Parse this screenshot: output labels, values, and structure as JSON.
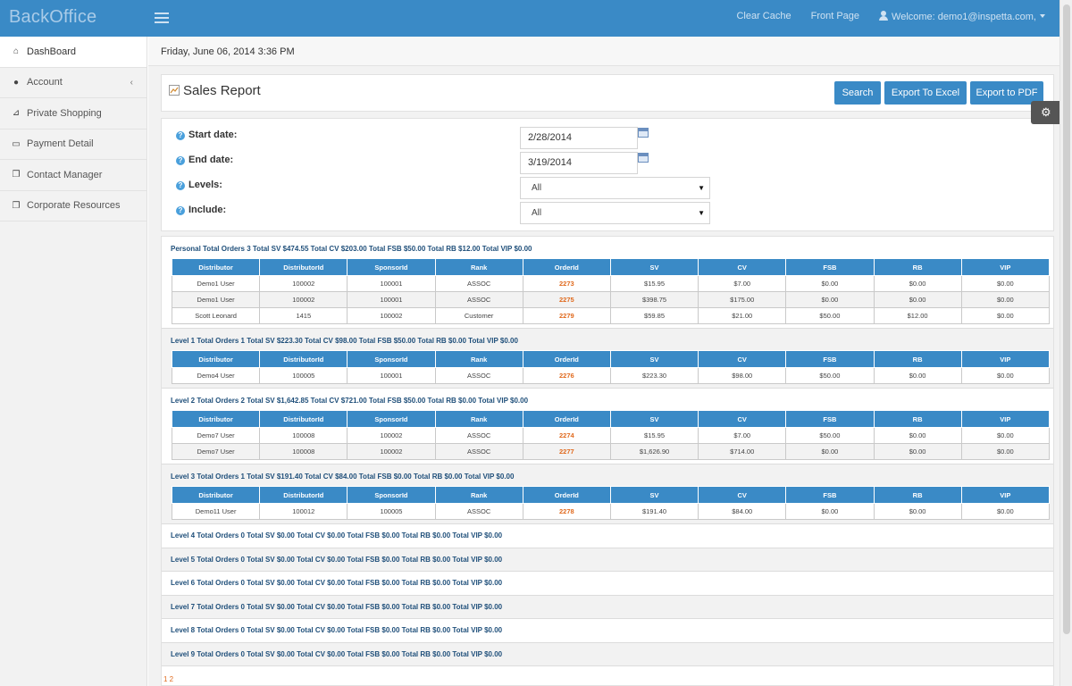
{
  "app": {
    "brand": "BackOffice"
  },
  "topnav": {
    "clear_cache": "Clear Cache",
    "front_page": "Front Page",
    "welcome": "Welcome: demo1@inspetta.com,"
  },
  "sidebar": {
    "items": [
      {
        "label": "DashBoard",
        "icon": "dashboard-icon"
      },
      {
        "label": "Account",
        "icon": "user-icon",
        "chevron": "‹"
      },
      {
        "label": "Private Shopping",
        "icon": "cart-icon"
      },
      {
        "label": "Payment Detail",
        "icon": "money-icon"
      },
      {
        "label": "Contact Manager",
        "icon": "copy-icon"
      },
      {
        "label": "Corporate Resources",
        "icon": "copy-icon"
      }
    ]
  },
  "datebar": {
    "text": "Friday, June 06, 2014 3:36 PM"
  },
  "page": {
    "title": "Sales Report",
    "search_label": "Search",
    "export_excel_label": "Export To Excel",
    "export_pdf_label": "Export to PDF"
  },
  "filters": {
    "start_label": "Start date:",
    "start_value": "2/28/2014",
    "end_label": "End date:",
    "end_value": "3/19/2014",
    "levels_label": "Levels:",
    "levels_value": "All",
    "include_label": "Include:",
    "include_value": "All"
  },
  "columns": [
    "Distributor",
    "DistributorId",
    "SponsorId",
    "Rank",
    "OrderId",
    "SV",
    "CV",
    "FSB",
    "RB",
    "VIP"
  ],
  "sections": [
    {
      "summary": "Personal Total Orders 3 Total SV $474.55 Total CV $203.00 Total FSB $50.00 Total RB $12.00 Total VIP $0.00",
      "rows": [
        [
          "Demo1 User",
          "100002",
          "100001",
          "ASSOC",
          "2273",
          "$15.95",
          "$7.00",
          "$0.00",
          "$0.00",
          "$0.00"
        ],
        [
          "Demo1 User",
          "100002",
          "100001",
          "ASSOC",
          "2275",
          "$398.75",
          "$175.00",
          "$0.00",
          "$0.00",
          "$0.00"
        ],
        [
          "Scott Leonard",
          "1415",
          "100002",
          "Customer",
          "2279",
          "$59.85",
          "$21.00",
          "$50.00",
          "$12.00",
          "$0.00"
        ]
      ]
    },
    {
      "summary": "Level 1 Total Orders 1 Total SV $223.30 Total CV $98.00 Total FSB $50.00 Total RB $0.00 Total VIP $0.00",
      "rows": [
        [
          "Demo4 User",
          "100005",
          "100001",
          "ASSOC",
          "2276",
          "$223.30",
          "$98.00",
          "$50.00",
          "$0.00",
          "$0.00"
        ]
      ]
    },
    {
      "summary": "Level 2 Total Orders 2 Total SV $1,642.85 Total CV $721.00 Total FSB $50.00 Total RB $0.00 Total VIP $0.00",
      "rows": [
        [
          "Demo7 User",
          "100008",
          "100002",
          "ASSOC",
          "2274",
          "$15.95",
          "$7.00",
          "$50.00",
          "$0.00",
          "$0.00"
        ],
        [
          "Demo7 User",
          "100008",
          "100002",
          "ASSOC",
          "2277",
          "$1,626.90",
          "$714.00",
          "$0.00",
          "$0.00",
          "$0.00"
        ]
      ]
    },
    {
      "summary": "Level 3 Total Orders 1 Total SV $191.40 Total CV $84.00 Total FSB $0.00 Total RB $0.00 Total VIP $0.00",
      "rows": [
        [
          "Demo11 User",
          "100012",
          "100005",
          "ASSOC",
          "2278",
          "$191.40",
          "$84.00",
          "$0.00",
          "$0.00",
          "$0.00"
        ]
      ]
    }
  ],
  "empty_levels": [
    "Level 4 Total Orders 0 Total SV $0.00 Total CV $0.00 Total FSB $0.00 Total RB $0.00 Total VIP $0.00",
    "Level 5 Total Orders 0 Total SV $0.00 Total CV $0.00 Total FSB $0.00 Total RB $0.00 Total VIP $0.00",
    "Level 6 Total Orders 0 Total SV $0.00 Total CV $0.00 Total FSB $0.00 Total RB $0.00 Total VIP $0.00",
    "Level 7 Total Orders 0 Total SV $0.00 Total CV $0.00 Total FSB $0.00 Total RB $0.00 Total VIP $0.00",
    "Level 8 Total Orders 0 Total SV $0.00 Total CV $0.00 Total FSB $0.00 Total RB $0.00 Total VIP $0.00",
    "Level 9 Total Orders 0 Total SV $0.00 Total CV $0.00 Total FSB $0.00 Total RB $0.00 Total VIP $0.00"
  ],
  "pager": "1 2",
  "colors": {
    "header_blue": "#3a8ac6",
    "order_id": "#e06a1e",
    "summary_text": "#1f4f7a"
  }
}
